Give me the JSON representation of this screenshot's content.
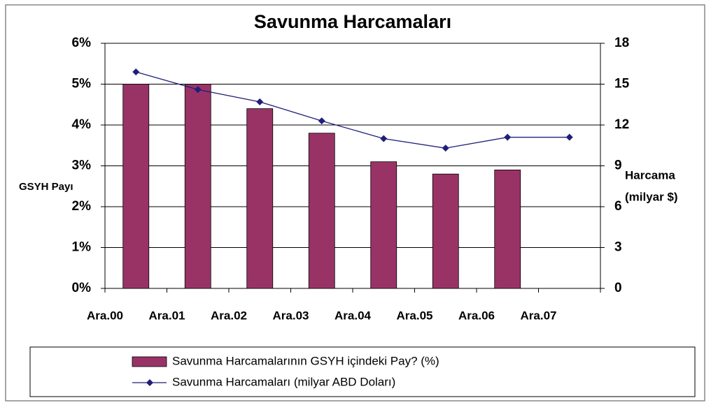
{
  "chart_data": {
    "type": "bar_line",
    "title": "Savunma Harcamaları",
    "ylabel": "GSYH Payı",
    "y2label": [
      "Harcama",
      "(milyar $)"
    ],
    "categories": [
      "Ara.00",
      "Ara.01",
      "Ara.02",
      "Ara.03",
      "Ara.04",
      "Ara.05",
      "Ara.06",
      "Ara.07"
    ],
    "series": [
      {
        "name": "Savunma Harcamalarının GSYH içindeki Pay? (%)",
        "type": "bar",
        "color": "#993366",
        "values": [
          5.0,
          5.0,
          4.4,
          3.8,
          3.1,
          2.8,
          2.9,
          null
        ]
      },
      {
        "name": "Savunma Harcamaları (milyar ABD Doları)",
        "type": "line",
        "axis": "y2",
        "color": "#1f1f7a",
        "values": [
          15.9,
          14.6,
          13.7,
          12.3,
          11.0,
          10.3,
          11.1,
          11.1
        ]
      }
    ],
    "ylim": [
      0,
      6
    ],
    "yticks": [
      {
        "value": 0,
        "label": "0%"
      },
      {
        "value": 1,
        "label": "1%"
      },
      {
        "value": 2,
        "label": "2%"
      },
      {
        "value": 3,
        "label": "3%"
      },
      {
        "value": 4,
        "label": "4%"
      },
      {
        "value": 5,
        "label": "5%"
      },
      {
        "value": 6,
        "label": "6%"
      }
    ],
    "y2lim": [
      0,
      18
    ],
    "y2ticks": [
      0,
      3,
      6,
      9,
      12,
      15,
      18
    ],
    "grid": true,
    "legend": "bottom"
  }
}
